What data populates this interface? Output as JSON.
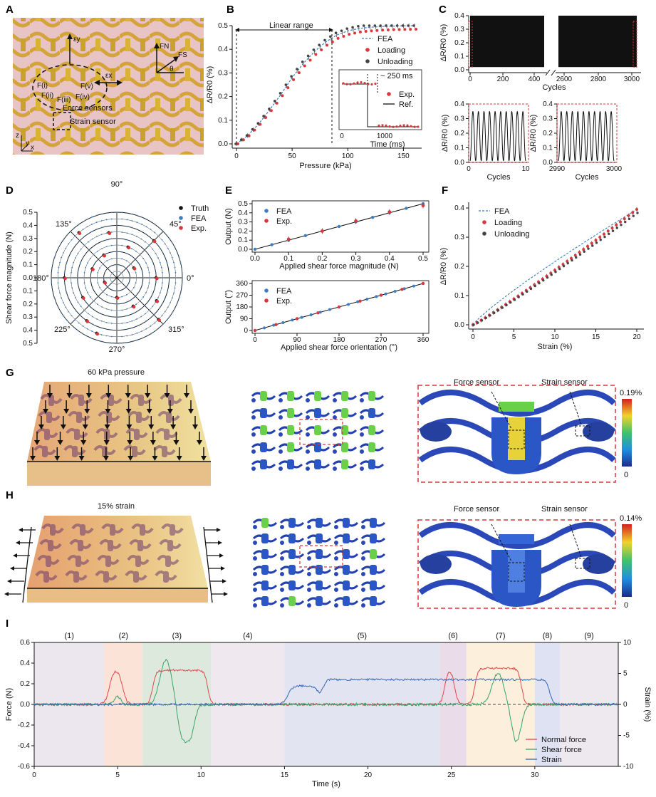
{
  "colors": {
    "fea": "#3a7fc2",
    "exp": "#d9373a",
    "truth": "#111111",
    "unload": "#444444",
    "normal": "#e0474c",
    "shear": "#3aa36a",
    "strain": "#3266b5"
  },
  "panels": {
    "A": {
      "letter": "A",
      "labels": {
        "ey": "εy",
        "ex": "εx",
        "fn": "FN",
        "fs": "FS",
        "theta": "θ",
        "f1": "F(i)",
        "f2": "F(ii)",
        "f3": "F(iii)",
        "f4": "F(iv)",
        "f5": "F(v)",
        "force_sensors": "Force sensors",
        "strain_sensor": "Strain sensor",
        "axis_z": "z",
        "axis_y": "y",
        "axis_x": "x"
      }
    },
    "B": {
      "letter": "B",
      "linear_range": "Linear range",
      "inset_250": "~ 250 ms"
    },
    "C": {
      "letter": "C"
    },
    "D": {
      "letter": "D",
      "angles": [
        "90°",
        "45°",
        "0°",
        "315°",
        "270°",
        "225°",
        "180°",
        "135°"
      ]
    },
    "E": {
      "letter": "E"
    },
    "F": {
      "letter": "F"
    },
    "G": {
      "letter": "G",
      "caption": "60 kPa pressure",
      "force_sensor": "Force sensor",
      "strain_sensor": "Strain sensor",
      "cb_max": "0.19%",
      "cb_min": "0"
    },
    "H": {
      "letter": "H",
      "caption": "15% strain",
      "force_sensor": "Force sensor",
      "strain_sensor": "Strain sensor",
      "cb_max": "0.14%",
      "cb_min": "0"
    },
    "I": {
      "letter": "I",
      "phases": [
        "(1)",
        "(2)",
        "(3)",
        "(4)",
        "(5)",
        "(6)",
        "(7)",
        "(8)",
        "(9)"
      ]
    }
  },
  "chart_data": [
    {
      "id": "B",
      "type": "line",
      "xlabel": "Pressure (kPa)",
      "ylabel": "ΔR/R0 (%)",
      "xlim": [
        0,
        160
      ],
      "ylim": [
        0,
        0.5
      ],
      "xticks": [
        "0",
        "50",
        "100",
        "150"
      ],
      "yticks": [
        "0.0",
        "0.1",
        "0.2",
        "0.3",
        "0.4",
        "0.5"
      ],
      "legend": [
        "FEA",
        "Loading",
        "Unloading"
      ],
      "series": [
        {
          "name": "FEA",
          "x": [
            0,
            10,
            20,
            30,
            40,
            50,
            60,
            70,
            80,
            90,
            100,
            110,
            120,
            130,
            140,
            150,
            160
          ],
          "y": [
            0,
            0.035,
            0.085,
            0.145,
            0.21,
            0.28,
            0.34,
            0.39,
            0.43,
            0.46,
            0.478,
            0.488,
            0.493,
            0.496,
            0.498,
            0.499,
            0.5
          ]
        }
      ],
      "inset": {
        "xlabel": "Time (ms)",
        "xticks": [
          "0",
          "1000"
        ],
        "legend": [
          "Exp.",
          "Ref."
        ]
      }
    },
    {
      "id": "C",
      "type": "line",
      "xlabel": "Cycles",
      "ylabel": "ΔR/R0 (%)",
      "ylim": [
        0,
        0.4
      ],
      "xticks": [
        "0",
        "200",
        "400",
        "2600",
        "2800",
        "3000"
      ],
      "yticks": [
        "0.0",
        "0.1",
        "0.2",
        "0.3",
        "0.4"
      ],
      "insets": [
        {
          "xlabel": "Cycles",
          "xticks": [
            "0",
            "10"
          ],
          "yticks": [
            "0.0",
            "0.1",
            "0.2",
            "0.3",
            "0.4"
          ]
        },
        {
          "xlabel": "Cycles",
          "xticks": [
            "2990",
            "3000"
          ],
          "yticks": [
            "0.0",
            "0.1",
            "0.2",
            "0.3",
            "0.4"
          ]
        }
      ]
    },
    {
      "id": "D",
      "type": "scatter",
      "ylabel": "Shear force magnitude (N)",
      "rticks": [
        "0.5",
        "0.4",
        "0.3",
        "0.2",
        "0.1",
        "0.0"
      ],
      "legend": [
        "Truth",
        "FEA",
        "Exp."
      ]
    },
    {
      "id": "E1",
      "type": "scatter",
      "xlabel": "Applied shear force magnitude (N)",
      "ylabel": "Output (N)",
      "xlim": [
        0,
        0.5
      ],
      "ylim": [
        0,
        0.5
      ],
      "xticks": [
        "0.0",
        "0.1",
        "0.2",
        "0.3",
        "0.4",
        "0.5"
      ],
      "yticks": [
        "0.0",
        "0.1",
        "0.2",
        "0.3",
        "0.4",
        "0.5"
      ],
      "legend": [
        "FEA",
        "Exp."
      ],
      "series": [
        {
          "name": "FEA",
          "x": [
            0,
            0.05,
            0.1,
            0.15,
            0.2,
            0.25,
            0.3,
            0.35,
            0.4,
            0.45,
            0.5
          ],
          "y": [
            0,
            0.05,
            0.1,
            0.15,
            0.2,
            0.25,
            0.3,
            0.35,
            0.4,
            0.45,
            0.5
          ]
        },
        {
          "name": "Exp.",
          "x": [
            0.1,
            0.2,
            0.3,
            0.4,
            0.5
          ],
          "y": [
            0.11,
            0.2,
            0.31,
            0.41,
            0.48
          ]
        }
      ]
    },
    {
      "id": "E2",
      "type": "scatter",
      "xlabel": "Applied shear force orientation (°)",
      "ylabel": "Output (°)",
      "xlim": [
        0,
        360
      ],
      "ylim": [
        0,
        360
      ],
      "xticks": [
        "0",
        "90",
        "180",
        "270",
        "360"
      ],
      "yticks": [
        "0",
        "90",
        "180",
        "270",
        "360"
      ],
      "legend": [
        "FEA",
        "Exp."
      ]
    },
    {
      "id": "F",
      "type": "line",
      "xlabel": "Strain (%)",
      "ylabel": "ΔR/R0 (%)",
      "xlim": [
        0,
        20
      ],
      "ylim": [
        0,
        0.4
      ],
      "xticks": [
        "0",
        "5",
        "10",
        "15",
        "20"
      ],
      "yticks": [
        "0.0",
        "0.1",
        "0.2",
        "0.3",
        "0.4"
      ],
      "legend": [
        "FEA",
        "Loading",
        "Unloading"
      ]
    },
    {
      "id": "I",
      "type": "line",
      "xlabel": "Time (s)",
      "ylabel": "Force (N)",
      "y2label": "Strain (%)",
      "xlim": [
        0,
        35
      ],
      "ylim": [
        -0.6,
        0.6
      ],
      "y2lim": [
        -10,
        10
      ],
      "xticks": [
        "0",
        "5",
        "10",
        "15",
        "20",
        "25",
        "30"
      ],
      "yticks": [
        "0.6",
        "0.4",
        "0.2",
        "0.0",
        "-0.2",
        "-0.4",
        "-0.6"
      ],
      "y2ticks": [
        "10",
        "5",
        "0",
        "-5",
        "-10"
      ],
      "legend": [
        "Normal force",
        "Shear force",
        "Strain"
      ]
    }
  ]
}
